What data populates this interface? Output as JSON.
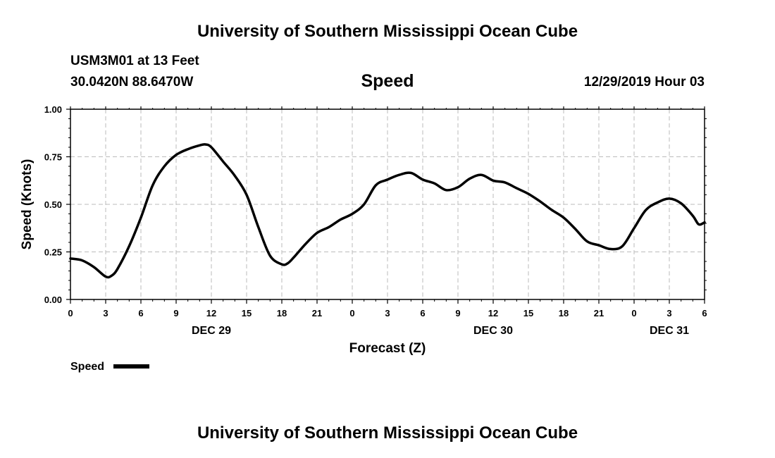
{
  "header": {
    "title": "University of Southern Mississippi Ocean Cube",
    "station": "USM3M01 at 13 Feet",
    "coords": "30.0420N 88.6470W",
    "variable": "Speed",
    "datetime": "12/29/2019 Hour 03"
  },
  "footer": {
    "title": "University of Southern Mississippi Ocean Cube"
  },
  "chart_data": {
    "type": "line",
    "xlabel": "Forecast (Z)",
    "ylabel": "Speed (Knots)",
    "ylim": [
      0,
      1
    ],
    "yticks": [
      "0.00",
      "0.25",
      "0.50",
      "0.75",
      "1.00"
    ],
    "x_unit": "hours",
    "xlim": [
      0,
      54
    ],
    "xtick_labels": [
      "0",
      "3",
      "6",
      "9",
      "12",
      "15",
      "18",
      "21",
      "0",
      "3",
      "6",
      "9",
      "12",
      "15",
      "18",
      "21",
      "0",
      "3",
      "6"
    ],
    "date_labels": [
      {
        "text": "DEC 29",
        "hour": 12
      },
      {
        "text": "DEC 30",
        "hour": 36
      },
      {
        "text": "DEC 31",
        "hour": 51
      }
    ],
    "grid": true,
    "legend": "bottom-left",
    "series": [
      {
        "name": "Speed",
        "color": "#000000",
        "x": [
          0,
          1,
          2,
          3,
          3.5,
          4,
          5,
          6,
          7,
          8,
          9,
          10,
          11,
          11.5,
          12,
          13,
          14,
          15,
          16,
          17,
          18,
          18.5,
          19,
          20,
          21,
          22,
          23,
          24,
          25,
          26,
          27,
          28,
          29,
          30,
          31,
          32,
          33,
          34,
          35,
          36,
          37,
          38,
          39,
          40,
          41,
          42,
          43,
          44,
          45,
          46,
          47,
          48,
          49,
          50,
          51,
          52,
          53,
          53.5,
          54
        ],
        "values": [
          0.215,
          0.205,
          0.17,
          0.12,
          0.125,
          0.16,
          0.28,
          0.43,
          0.6,
          0.7,
          0.76,
          0.79,
          0.81,
          0.815,
          0.8,
          0.725,
          0.65,
          0.55,
          0.38,
          0.23,
          0.185,
          0.19,
          0.22,
          0.29,
          0.35,
          0.38,
          0.42,
          0.45,
          0.5,
          0.6,
          0.63,
          0.655,
          0.665,
          0.63,
          0.61,
          0.575,
          0.59,
          0.635,
          0.655,
          0.625,
          0.615,
          0.585,
          0.555,
          0.515,
          0.47,
          0.43,
          0.37,
          0.305,
          0.285,
          0.265,
          0.28,
          0.375,
          0.47,
          0.51,
          0.53,
          0.505,
          0.44,
          0.395,
          0.405
        ]
      }
    ]
  }
}
